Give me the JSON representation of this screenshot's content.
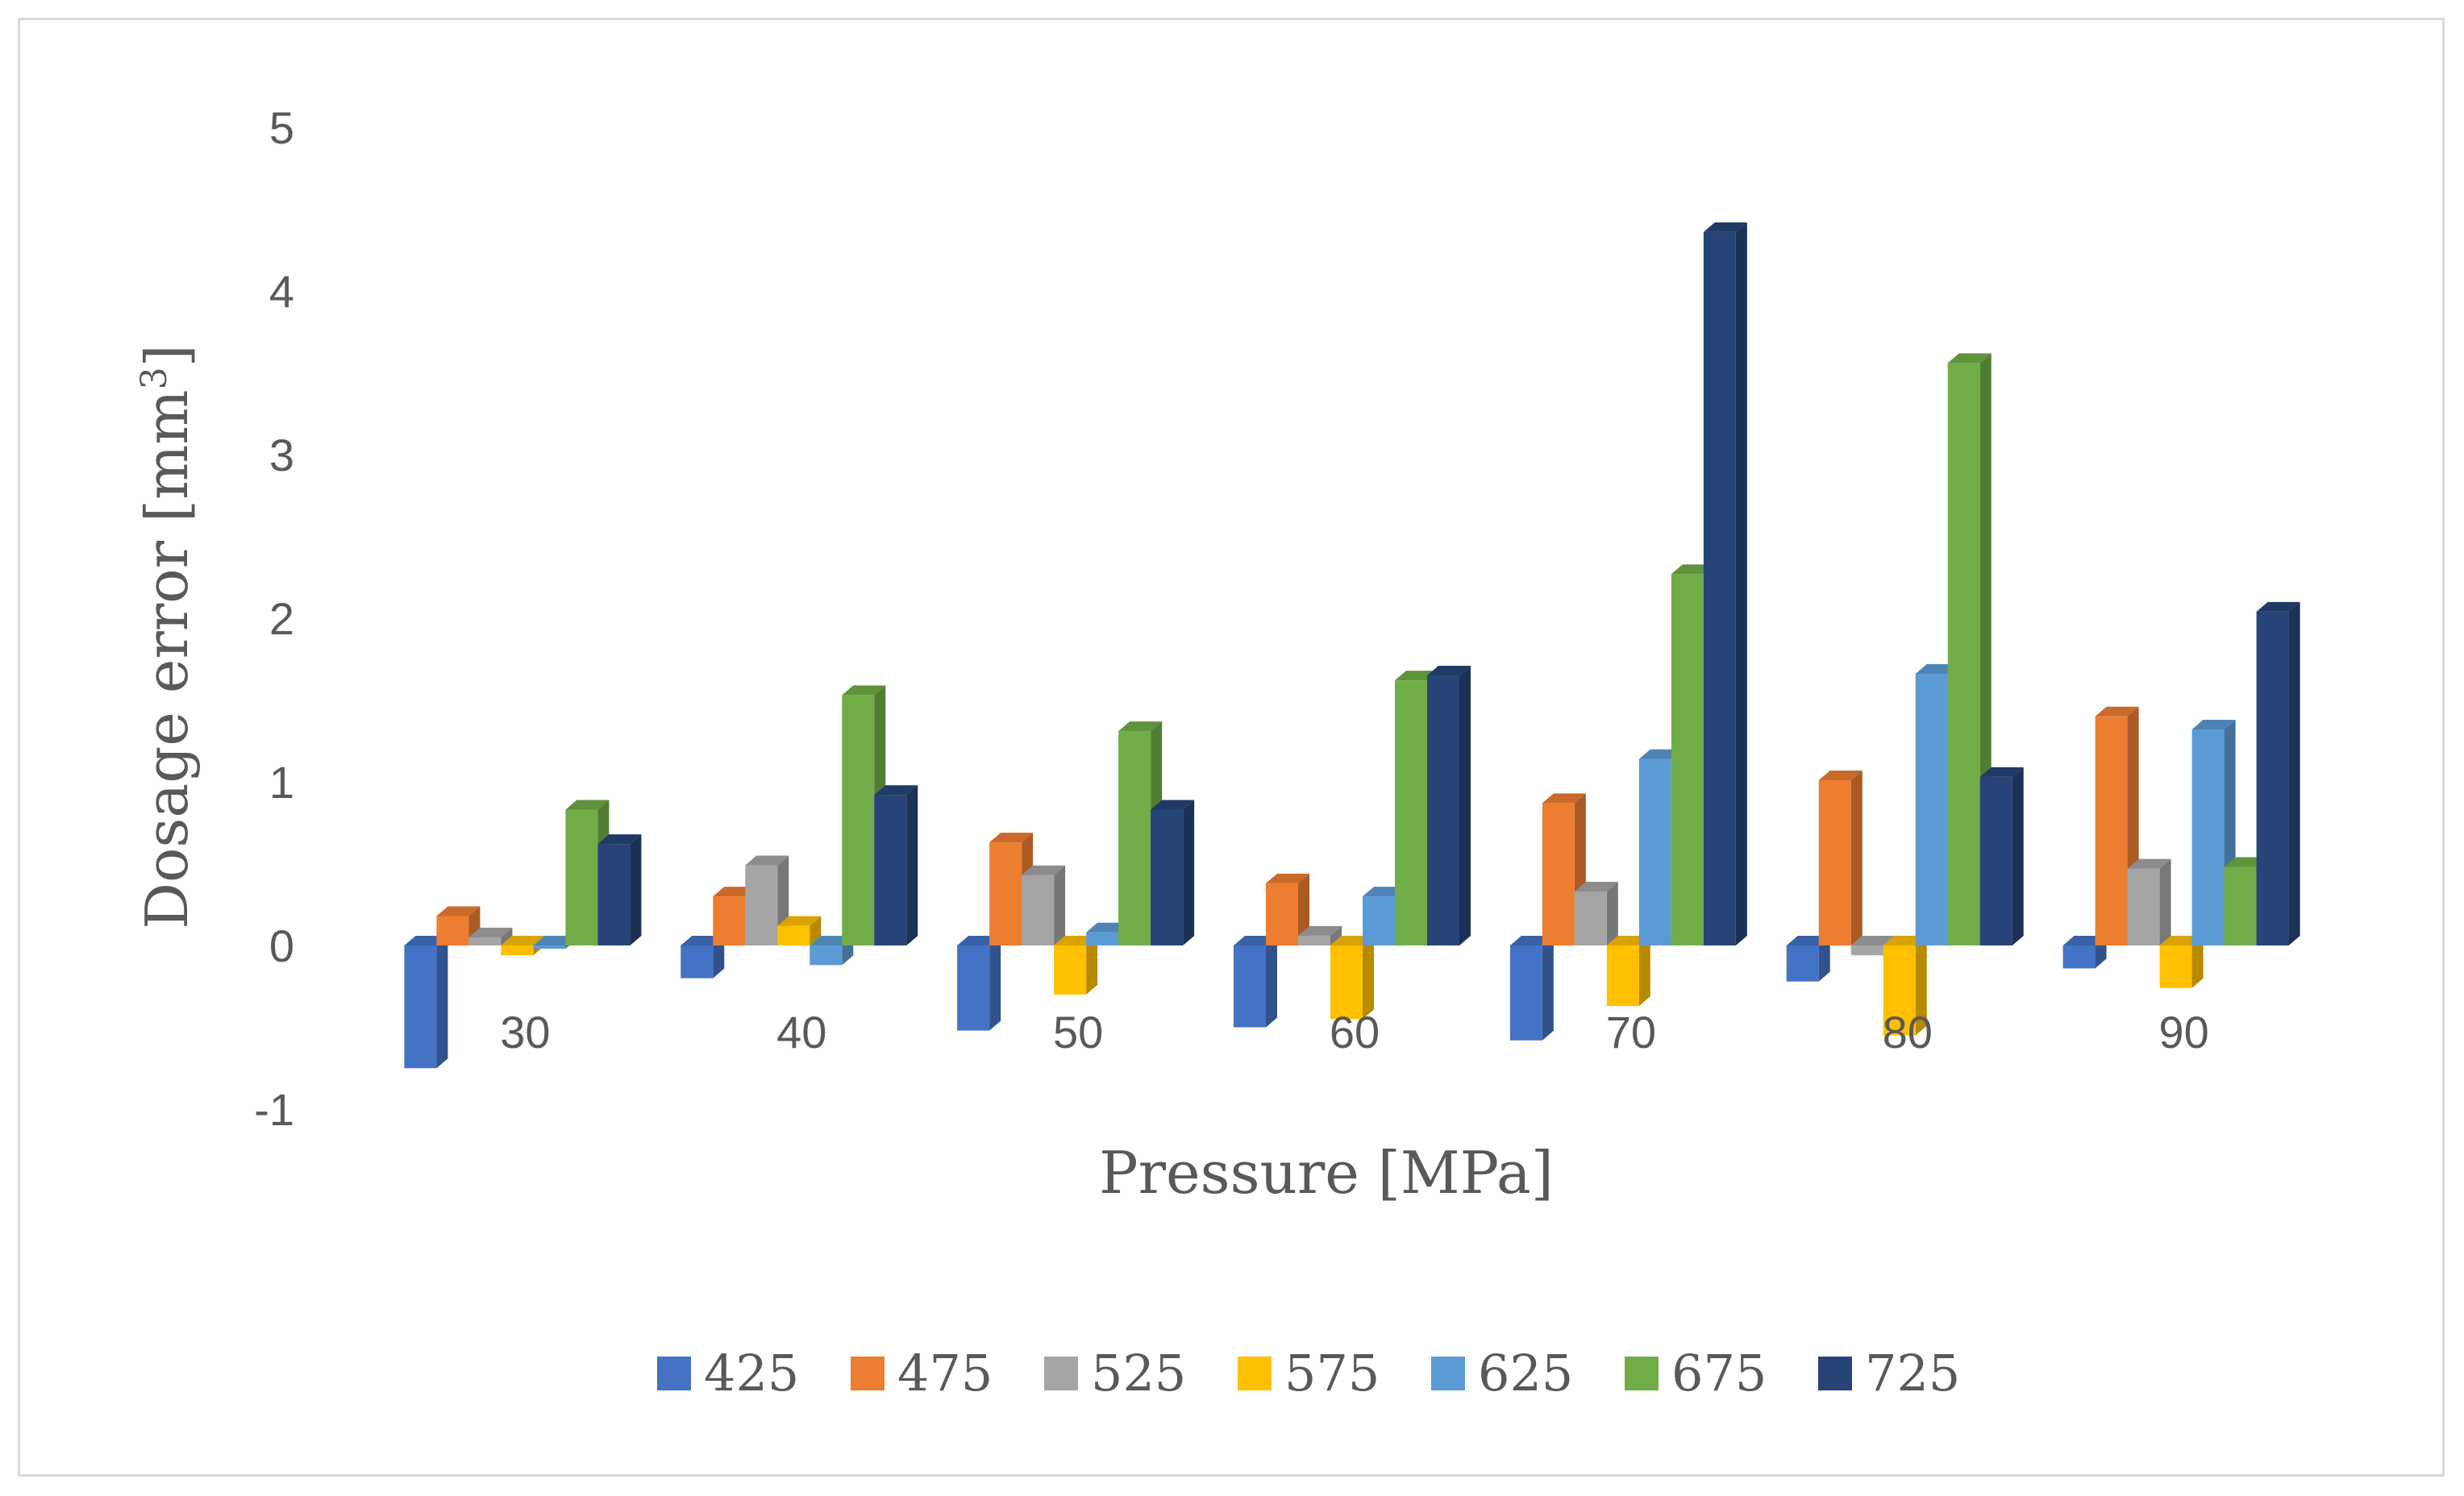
{
  "chart_data": {
    "type": "bar",
    "title": "",
    "xlabel": "Pressure [MPa]",
    "ylabel_text": "Dosage error [mm",
    "ylabel_sup": "3",
    "ylabel_close": "]",
    "ylim": [
      -1,
      5
    ],
    "yticks": [
      "-1",
      "0",
      "1",
      "2",
      "3",
      "4",
      "5"
    ],
    "categories": [
      "30",
      "40",
      "50",
      "60",
      "70",
      "80",
      "90"
    ],
    "legend_position": "bottom",
    "series": [
      {
        "name": "425",
        "color": "#4472c4",
        "values": [
          -0.75,
          -0.2,
          -0.52,
          -0.5,
          -0.58,
          -0.22,
          -0.14
        ]
      },
      {
        "name": "475",
        "color": "#ed7d31",
        "values": [
          0.18,
          0.3,
          0.63,
          0.38,
          0.87,
          1.01,
          1.4
        ]
      },
      {
        "name": "525",
        "color": "#a5a5a5",
        "values": [
          0.05,
          0.49,
          0.43,
          0.06,
          0.33,
          -0.06,
          0.47
        ]
      },
      {
        "name": "575",
        "color": "#ffc000",
        "values": [
          -0.06,
          0.12,
          -0.3,
          -0.45,
          -0.37,
          -0.55,
          -0.26
        ]
      },
      {
        "name": "625",
        "color": "#5b9bd5",
        "values": [
          -0.02,
          -0.12,
          0.08,
          0.3,
          1.14,
          1.66,
          1.32
        ]
      },
      {
        "name": "675",
        "color": "#70ad47",
        "values": [
          0.83,
          1.53,
          1.31,
          1.62,
          2.27,
          3.56,
          0.48
        ]
      },
      {
        "name": "725",
        "color": "#264478",
        "values": [
          0.62,
          0.92,
          0.83,
          1.65,
          4.36,
          1.03,
          2.04
        ]
      }
    ]
  }
}
